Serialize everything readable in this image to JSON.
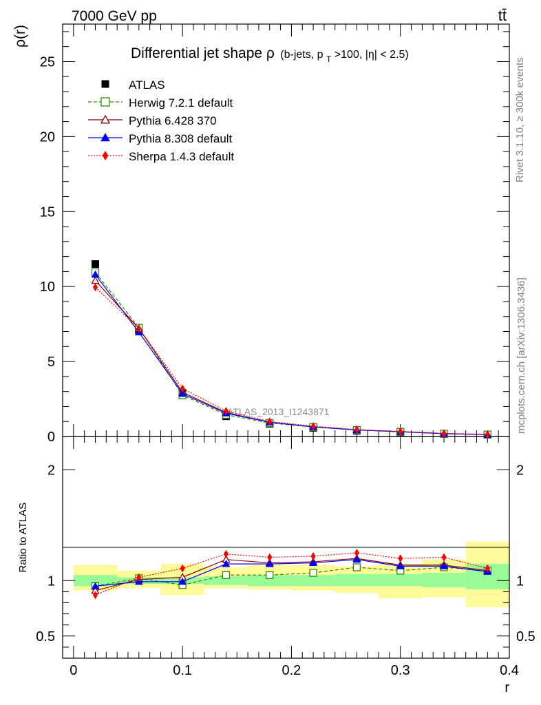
{
  "header": {
    "energy_label": "7000 GeV pp",
    "process_label": "tt̄"
  },
  "side_labels": {
    "rivet": "Rivet 3.1.10, ≥ 300k events",
    "mcplots": "mcplots.cern.ch [arXiv:1306.3436]"
  },
  "chart_data": {
    "type": "line",
    "title": "Differential jet shape ρ (b-jets, pT>100, |η| < 2.5)",
    "title_main": "Differential jet shape ρ",
    "title_sub": "(b-jets, p",
    "title_sub_T": "T",
    "title_sub_rest": ">100, |η| < 2.5)",
    "watermark": "ATLAS_2013_I1243871",
    "xlabel": "r",
    "ylabel_top": "ρ(r)",
    "ylabel_bottom": "Ratio to ATLAS",
    "xlim": [
      -0.01,
      0.4
    ],
    "ylim_top": [
      0,
      27.5
    ],
    "ylim_bottom": [
      0.3,
      2.3
    ],
    "x_ticks": [
      "0",
      "0.1",
      "0.2",
      "0.3",
      "0.4"
    ],
    "y_ticks_top": [
      "0",
      "5",
      "10",
      "15",
      "20",
      "25"
    ],
    "y_ticks_bottom": [
      "0.5",
      "1",
      "2"
    ],
    "x": [
      0.02,
      0.06,
      0.1,
      0.14,
      0.18,
      0.22,
      0.26,
      0.3,
      0.34,
      0.38
    ],
    "x_bin_edges": [
      0.0,
      0.04,
      0.08,
      0.12,
      0.16,
      0.2,
      0.24,
      0.28,
      0.32,
      0.36,
      0.4
    ],
    "data": {
      "name": "ATLAS",
      "values": [
        11.5,
        7.1,
        2.9,
        1.35,
        0.85,
        0.58,
        0.38,
        0.28,
        0.17,
        0.12
      ]
    },
    "band_stat": {
      "lo": [
        0.95,
        0.97,
        0.97,
        0.96,
        0.95,
        0.95,
        0.95,
        0.95,
        0.94,
        0.92
      ],
      "hi": [
        1.05,
        1.03,
        1.03,
        1.04,
        1.05,
        1.05,
        1.06,
        1.06,
        1.07,
        1.15
      ]
    },
    "band_total": {
      "lo": [
        0.91,
        0.93,
        0.87,
        0.93,
        0.92,
        0.91,
        0.89,
        0.84,
        0.85,
        0.76
      ],
      "hi": [
        1.14,
        1.09,
        1.15,
        1.12,
        1.14,
        1.14,
        1.13,
        1.15,
        1.19,
        1.35
      ]
    },
    "series": [
      {
        "name": "Herwig 7.2.1 default",
        "color": "#2e8b00",
        "marker": "open-square",
        "dash": "5,3",
        "values": [
          10.95,
          7.25,
          2.75,
          1.45,
          0.9,
          0.63,
          0.43,
          0.31,
          0.19,
          0.13
        ],
        "ratio": [
          0.95,
          1.02,
          0.96,
          1.05,
          1.05,
          1.07,
          1.12,
          1.09,
          1.12,
          1.09
        ]
      },
      {
        "name": "Pythia 6.428 370",
        "color": "#8b0000",
        "marker": "open-triangle",
        "dash": "",
        "values": [
          10.4,
          7.2,
          2.95,
          1.6,
          0.95,
          0.64,
          0.44,
          0.32,
          0.19,
          0.13
        ],
        "ratio": [
          0.91,
          1.01,
          1.03,
          1.19,
          1.16,
          1.17,
          1.2,
          1.14,
          1.14,
          1.09
        ]
      },
      {
        "name": "Pythia 8.308 default",
        "color": "#0000ff",
        "marker": "filled-triangle",
        "dash": "",
        "values": [
          10.8,
          6.95,
          2.85,
          1.55,
          0.95,
          0.64,
          0.44,
          0.32,
          0.19,
          0.13
        ],
        "ratio": [
          0.95,
          0.99,
          0.99,
          1.15,
          1.15,
          1.16,
          1.19,
          1.13,
          1.13,
          1.08
        ]
      },
      {
        "name": "Sherpa 1.4.3 default",
        "color": "#ff0000",
        "marker": "filled-diamond",
        "dash": "2,2",
        "values": [
          9.95,
          7.2,
          3.2,
          1.7,
          1.0,
          0.69,
          0.46,
          0.34,
          0.21,
          0.14
        ],
        "ratio": [
          0.87,
          1.03,
          1.11,
          1.24,
          1.21,
          1.22,
          1.25,
          1.2,
          1.21,
          1.11
        ]
      }
    ],
    "colors": {
      "band_stat": "#98fb98",
      "band_total": "#fffa99",
      "data": "#000000"
    }
  }
}
